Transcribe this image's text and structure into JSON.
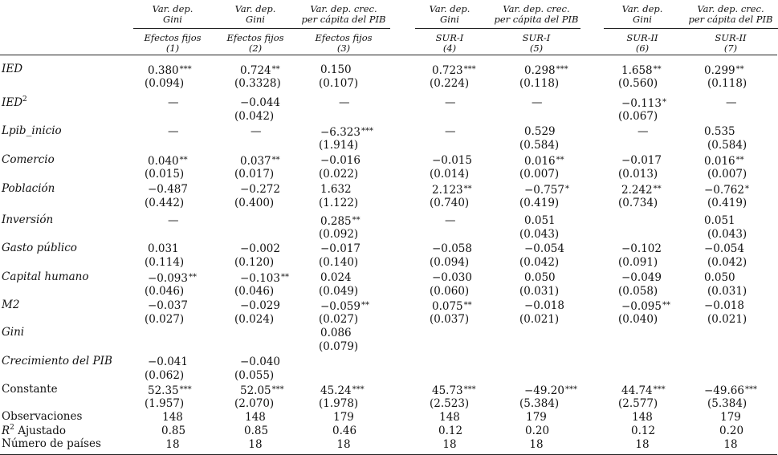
{
  "columns": [
    {
      "dep_line1": "Var. dep.",
      "dep_line2": "Gini",
      "method": "Efectos fijos",
      "num": "(1)"
    },
    {
      "dep_line1": "Var. dep.",
      "dep_line2": "Gini",
      "method": "Efectos fijos",
      "num": "(2)"
    },
    {
      "dep_line1": "Var. dep. crec.",
      "dep_line2": "per cápita del PIB",
      "method": "Efectos fijos",
      "num": "(3)"
    },
    {
      "dep_line1": "Var. dep.",
      "dep_line2": "Gini",
      "method": "SUR-I",
      "num": "(4)"
    },
    {
      "dep_line1": "Var. dep. crec.",
      "dep_line2": "per cápita del PIB",
      "method": "SUR-I",
      "num": "(5)"
    },
    {
      "dep_line1": "Var. dep.",
      "dep_line2": "Gini",
      "method": "SUR-II",
      "num": "(6)"
    },
    {
      "dep_line1": "Var. dep. crec.",
      "dep_line2": "per cápita del PIB",
      "method": "SUR-II",
      "num": "(7)"
    }
  ],
  "rows": [
    {
      "label": "IED",
      "coef": [
        "0.380",
        "0.724",
        "0.150",
        "0.723",
        "0.298",
        "1.658",
        "0.299"
      ],
      "stars": [
        "***",
        "**",
        "",
        "***",
        "***",
        "**",
        "**"
      ],
      "se": [
        "(0.094)",
        "(0.3328)",
        "(0.107)",
        "(0.224)",
        "(0.118)",
        "(0.560)",
        "(0.118)"
      ]
    },
    {
      "label": "IED",
      "label_sup": "2",
      "coef": [
        "—",
        "−0.044",
        "—",
        "—",
        "—",
        "−0.113",
        "—"
      ],
      "stars": [
        "",
        "",
        "",
        "",
        "",
        "*",
        ""
      ],
      "se": [
        "",
        "(0.042)",
        "",
        "",
        "",
        "(0.067)",
        ""
      ]
    },
    {
      "label": "Lpib_inicio",
      "coef": [
        "—",
        "—",
        "−6.323",
        "—",
        "0.529",
        "—",
        "0.535"
      ],
      "stars": [
        "",
        "",
        "***",
        "",
        "",
        "",
        ""
      ],
      "se": [
        "",
        "",
        "(1.914)",
        "",
        "(0.584)",
        "",
        "(0.584)"
      ]
    },
    {
      "label": "Comercio",
      "coef": [
        "0.040",
        "0.037",
        "−0.016",
        "−0.015",
        "0.016",
        "−0.017",
        "0.016"
      ],
      "stars": [
        "**",
        "**",
        "",
        "",
        "**",
        "",
        "**"
      ],
      "se": [
        "(0.015)",
        "(0.017)",
        "(0.022)",
        "(0.014)",
        "(0.007)",
        "(0.013)",
        "(0.007)"
      ]
    },
    {
      "label": "Población",
      "coef": [
        "−0.487",
        "−0.272",
        "1.632",
        "2.123",
        "−0.757",
        "2.242",
        "−0.762"
      ],
      "stars": [
        "",
        "",
        "",
        "**",
        "*",
        "**",
        "*"
      ],
      "se": [
        "(0.442)",
        "(0.400)",
        "(1.122)",
        "(0.740)",
        "(0.419)",
        "(0.734)",
        "(0.419)"
      ]
    },
    {
      "label": "Inversión",
      "coef": [
        "—",
        "",
        "0.285",
        "—",
        "0.051",
        "",
        "0.051"
      ],
      "stars": [
        "",
        "",
        "**",
        "",
        "",
        "",
        ""
      ],
      "se": [
        "",
        "",
        "(0.092)",
        "",
        "(0.043)",
        "",
        "(0.043)"
      ]
    },
    {
      "label": "Gasto público",
      "coef": [
        "0.031",
        "−0.002",
        "−0.017",
        "−0.058",
        "−0.054",
        "−0.102",
        "−0.054"
      ],
      "stars": [
        "",
        "",
        "",
        "",
        "",
        "",
        ""
      ],
      "se": [
        "(0.114)",
        "(0.120)",
        "(0.140)",
        "(0.094)",
        "(0.042)",
        "(0.091)",
        "(0.042)"
      ]
    },
    {
      "label": "Capital humano",
      "coef": [
        "−0.093",
        "−0.103",
        "0.024",
        "−0.030",
        "0.050",
        "−0.049",
        "0.050"
      ],
      "stars": [
        "**",
        "**",
        "",
        "",
        "",
        "",
        ""
      ],
      "se": [
        "(0.046)",
        "(0.046)",
        "(0.049)",
        "(0.060)",
        "(0.031)",
        "(0.058)",
        "(0.031)"
      ]
    },
    {
      "label": "M2",
      "coef": [
        "−0.037",
        "−0.029",
        "−0.059",
        "0.075",
        "−0.018",
        "−0.095",
        "−0.018"
      ],
      "stars": [
        "",
        "",
        "**",
        "**",
        "",
        "**",
        ""
      ],
      "se": [
        "(0.027)",
        "(0.024)",
        "(0.027)",
        "(0.037)",
        "(0.021)",
        "(0.040)",
        "(0.021)"
      ]
    },
    {
      "label": "Gini",
      "coef": [
        "",
        "",
        "0.086",
        "",
        "",
        "",
        ""
      ],
      "stars": [
        "",
        "",
        "",
        "",
        "",
        "",
        ""
      ],
      "se": [
        "",
        "",
        "(0.079)",
        "",
        "",
        "",
        ""
      ]
    },
    {
      "label": "Crecimiento del",
      "label_sc": "PIB",
      "coef": [
        "−0.041",
        "−0.040",
        "",
        "",
        "",
        "",
        ""
      ],
      "stars": [
        "",
        "",
        "",
        "",
        "",
        "",
        ""
      ],
      "se": [
        "(0.062)",
        "(0.055)",
        "",
        "",
        "",
        "",
        ""
      ]
    },
    {
      "label": "Constante",
      "plain": true,
      "coef": [
        "52.35",
        "52.05",
        "45.24",
        "45.73",
        "−49.20",
        "44.74",
        "−49.66"
      ],
      "stars": [
        "***",
        "***",
        "***",
        "***",
        "***",
        "***",
        "***"
      ],
      "se": [
        "(1.957)",
        "(2.070)",
        "(1.978)",
        "(2.523)",
        "(5.384)",
        "(2.577)",
        "(5.384)"
      ]
    }
  ],
  "stats": [
    {
      "label": "Observaciones",
      "values": [
        "148",
        "148",
        "179",
        "148",
        "179",
        "148",
        "179"
      ]
    },
    {
      "label": "Ajustado",
      "label_prefix": "R",
      "label_sup": "2",
      "values": [
        "0.85",
        "0.85",
        "0.46",
        "0.12",
        "0.20",
        "0.12",
        "0.20"
      ]
    },
    {
      "label": "Número de países",
      "values": [
        "18",
        "18",
        "18",
        "18",
        "18",
        "18",
        "18"
      ]
    }
  ]
}
